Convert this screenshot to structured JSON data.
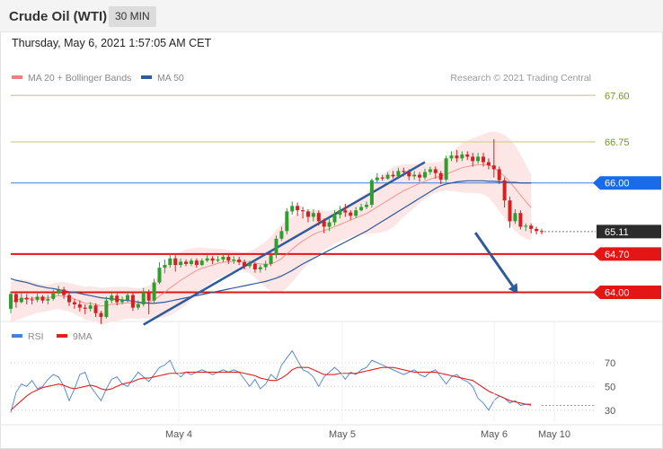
{
  "header": {
    "title": "Crude Oil (WTI)",
    "interval": "30 MIN",
    "datetime": "Thursday, May 6, 2021 1:57:05 AM CET"
  },
  "colors": {
    "bollinger": "#f08080",
    "bollinger_fill": "#fde3e3",
    "ma50": "#2f5b9a",
    "bull": "#2e9e2e",
    "bear": "#d42020",
    "target": "#9ab92e",
    "support": "#e41515",
    "resistance_blue": "#3d7be0",
    "arrow": "#2f5b9a",
    "rsi": "#4a7fd8",
    "rsi_ma": "#e02020",
    "last_price": "#2b2b2b"
  },
  "chart_data": [
    {
      "type": "candlestick",
      "legend": [
        {
          "label": "MA 20 + Bollinger Bands",
          "color": "#f08080"
        },
        {
          "label": "MA 50",
          "color": "#2f5b9a"
        }
      ],
      "legend_placement": "top-left",
      "credit": "Research © 2021 Trading Central",
      "ylim": [
        63.5,
        67.9
      ],
      "levels": [
        {
          "value": 67.6,
          "label": "67.60",
          "kind": "target"
        },
        {
          "value": 66.75,
          "label": "66.75",
          "kind": "target"
        },
        {
          "value": 66.0,
          "label": "66.00",
          "kind": "pivot"
        },
        {
          "value": 65.11,
          "label": "65.11",
          "kind": "last"
        },
        {
          "value": 64.7,
          "label": "64.70",
          "kind": "support"
        },
        {
          "value": 64.0,
          "label": "64.00",
          "kind": "support"
        }
      ],
      "trendline": {
        "from": [
          0.25,
          63.41
        ],
        "to": [
          0.78,
          66.38
        ]
      },
      "arrow": {
        "from": [
          0.875,
          65.09
        ],
        "to": [
          0.955,
          63.98
        ]
      },
      "x_ticks": [
        {
          "label": "May 4",
          "pos": 0.283
        },
        {
          "label": "May 5",
          "pos": 0.553
        },
        {
          "label": "May 6",
          "pos": 0.8
        },
        {
          "label": "May 10",
          "pos": 0.9
        }
      ],
      "candles": [
        [
          63.7,
          63.97,
          63.62,
          64.02
        ],
        [
          63.97,
          63.82,
          63.72,
          64.02
        ],
        [
          63.82,
          63.9,
          63.8,
          64.0
        ],
        [
          63.9,
          63.87,
          63.78,
          63.97
        ],
        [
          63.87,
          63.86,
          63.78,
          63.92
        ],
        [
          63.86,
          63.92,
          63.82,
          63.98
        ],
        [
          63.92,
          63.85,
          63.8,
          63.95
        ],
        [
          63.85,
          63.88,
          63.78,
          63.95
        ],
        [
          63.88,
          63.98,
          63.85,
          64.05
        ],
        [
          63.98,
          64.05,
          63.95,
          64.12
        ],
        [
          64.05,
          63.95,
          63.88,
          64.1
        ],
        [
          63.95,
          63.82,
          63.75,
          64.0
        ],
        [
          63.82,
          63.78,
          63.7,
          63.88
        ],
        [
          63.78,
          63.72,
          63.65,
          63.85
        ],
        [
          63.72,
          63.7,
          63.6,
          63.78
        ],
        [
          63.7,
          63.76,
          63.65,
          63.82
        ],
        [
          63.76,
          63.62,
          63.55,
          63.8
        ],
        [
          63.62,
          63.55,
          63.42,
          63.66
        ],
        [
          63.55,
          63.85,
          63.52,
          63.92
        ],
        [
          63.85,
          63.94,
          63.8,
          64.0
        ],
        [
          63.94,
          63.82,
          63.76,
          63.98
        ],
        [
          63.82,
          63.86,
          63.78,
          63.92
        ],
        [
          63.86,
          63.95,
          63.82,
          64.02
        ],
        [
          63.95,
          63.72,
          63.66,
          64.0
        ],
        [
          63.72,
          63.78,
          63.68,
          63.85
        ],
        [
          63.78,
          64.0,
          63.74,
          64.08
        ],
        [
          64.0,
          63.85,
          63.6,
          64.05
        ],
        [
          63.85,
          64.18,
          63.8,
          64.25
        ],
        [
          64.18,
          64.45,
          64.15,
          64.55
        ],
        [
          64.45,
          64.5,
          64.35,
          64.6
        ],
        [
          64.5,
          64.62,
          64.45,
          64.7
        ],
        [
          64.62,
          64.5,
          64.38,
          64.68
        ],
        [
          64.5,
          64.56,
          64.45,
          64.62
        ],
        [
          64.56,
          64.52,
          64.48,
          64.6
        ],
        [
          64.52,
          64.58,
          64.48,
          64.62
        ],
        [
          64.58,
          64.5,
          64.45,
          64.62
        ],
        [
          64.5,
          64.58,
          64.48,
          64.62
        ],
        [
          64.58,
          64.62,
          64.55,
          64.68
        ],
        [
          64.62,
          64.58,
          64.52,
          64.66
        ],
        [
          64.58,
          64.6,
          64.55,
          64.66
        ],
        [
          64.6,
          64.65,
          64.55,
          64.7
        ],
        [
          64.65,
          64.58,
          64.52,
          64.7
        ],
        [
          64.58,
          64.6,
          64.52,
          64.66
        ],
        [
          64.6,
          64.55,
          64.5,
          64.65
        ],
        [
          64.55,
          64.48,
          64.42,
          64.6
        ],
        [
          64.48,
          64.52,
          64.44,
          64.58
        ],
        [
          64.52,
          64.42,
          64.36,
          64.55
        ],
        [
          64.42,
          64.46,
          64.36,
          64.5
        ],
        [
          64.46,
          64.52,
          64.4,
          64.58
        ],
        [
          64.52,
          64.68,
          64.48,
          64.74
        ],
        [
          64.68,
          64.98,
          64.62,
          65.04
        ],
        [
          64.98,
          65.12,
          64.94,
          65.2
        ],
        [
          65.12,
          65.48,
          65.06,
          65.54
        ],
        [
          65.48,
          65.58,
          65.42,
          65.66
        ],
        [
          65.58,
          65.5,
          65.4,
          65.64
        ],
        [
          65.5,
          65.48,
          65.35,
          65.56
        ],
        [
          65.48,
          65.38,
          65.28,
          65.52
        ],
        [
          65.38,
          65.45,
          65.3,
          65.52
        ],
        [
          65.45,
          65.3,
          65.22,
          65.5
        ],
        [
          65.3,
          65.2,
          65.08,
          65.35
        ],
        [
          65.2,
          65.28,
          65.12,
          65.34
        ],
        [
          65.28,
          65.42,
          65.22,
          65.5
        ],
        [
          65.42,
          65.5,
          65.35,
          65.58
        ],
        [
          65.5,
          65.46,
          65.38,
          65.62
        ],
        [
          65.46,
          65.4,
          65.33,
          65.5
        ],
        [
          65.4,
          65.5,
          65.36,
          65.56
        ],
        [
          65.5,
          65.56,
          65.48,
          65.62
        ],
        [
          65.56,
          65.6,
          65.52,
          65.66
        ],
        [
          65.6,
          66.05,
          65.55,
          66.08
        ],
        [
          66.05,
          66.1,
          66.0,
          66.18
        ],
        [
          66.1,
          66.08,
          66.04,
          66.15
        ],
        [
          66.08,
          66.15,
          66.06,
          66.2
        ],
        [
          66.15,
          66.12,
          66.08,
          66.22
        ],
        [
          66.12,
          66.22,
          66.1,
          66.28
        ],
        [
          66.22,
          66.2,
          66.12,
          66.28
        ],
        [
          66.2,
          66.12,
          66.05,
          66.25
        ],
        [
          66.12,
          66.15,
          66.06,
          66.22
        ],
        [
          66.15,
          66.1,
          66.02,
          66.2
        ],
        [
          66.1,
          66.2,
          66.06,
          66.26
        ],
        [
          66.2,
          66.25,
          66.15,
          66.3
        ],
        [
          66.25,
          66.18,
          66.08,
          66.3
        ],
        [
          66.18,
          66.06,
          65.98,
          66.22
        ],
        [
          66.06,
          66.45,
          66.02,
          66.5
        ],
        [
          66.45,
          66.5,
          66.4,
          66.58
        ],
        [
          66.5,
          66.45,
          66.38,
          66.6
        ],
        [
          66.45,
          66.52,
          66.4,
          66.58
        ],
        [
          66.52,
          66.48,
          66.42,
          66.58
        ],
        [
          66.48,
          66.4,
          66.3,
          66.55
        ],
        [
          66.4,
          66.48,
          66.35,
          66.55
        ],
        [
          66.48,
          66.38,
          66.3,
          66.55
        ],
        [
          66.38,
          66.32,
          66.25,
          66.45
        ],
        [
          66.32,
          66.25,
          66.1,
          66.8
        ],
        [
          66.25,
          66.05,
          65.98,
          66.3
        ],
        [
          66.05,
          65.68,
          65.55,
          66.1
        ],
        [
          65.68,
          65.3,
          65.18,
          65.75
        ],
        [
          65.3,
          65.45,
          65.25,
          65.52
        ],
        [
          65.45,
          65.2,
          65.15,
          65.5
        ],
        [
          65.2,
          65.22,
          65.12,
          65.26
        ],
        [
          65.22,
          65.16,
          65.08,
          65.26
        ],
        [
          65.16,
          65.12,
          65.06,
          65.2
        ],
        [
          65.12,
          65.11,
          65.06,
          65.16
        ]
      ],
      "ma20": [
        63.82,
        63.86,
        63.88,
        63.89,
        63.89,
        63.9,
        63.89,
        63.9,
        63.92,
        63.94,
        63.93,
        63.91,
        63.88,
        63.84,
        63.8,
        63.8,
        63.78,
        63.75,
        63.76,
        63.78,
        63.79,
        63.8,
        63.81,
        63.8,
        63.79,
        63.81,
        63.82,
        63.86,
        63.93,
        64.0,
        64.08,
        64.15,
        64.22,
        64.28,
        64.34,
        64.4,
        64.44,
        64.47,
        64.5,
        64.53,
        64.55,
        64.56,
        64.57,
        64.57,
        64.56,
        64.55,
        64.53,
        64.52,
        64.51,
        64.52,
        64.56,
        64.62,
        64.7,
        64.79,
        64.87,
        64.94,
        65.0,
        65.06,
        65.1,
        65.13,
        65.16,
        65.2,
        65.24,
        65.28,
        65.32,
        65.36,
        65.4,
        65.44,
        65.5,
        65.56,
        65.62,
        65.68,
        65.74,
        65.8,
        65.86,
        65.9,
        65.95,
        65.99,
        66.03,
        66.07,
        66.1,
        66.12,
        66.16,
        66.2,
        66.24,
        66.28,
        66.3,
        66.32,
        66.33,
        66.34,
        66.33,
        66.28,
        66.2,
        66.12,
        66.02,
        65.9,
        65.78,
        65.66,
        65.55
      ],
      "bb_width": [
        0.38,
        0.37,
        0.36,
        0.33,
        0.3,
        0.27,
        0.25,
        0.24,
        0.24,
        0.25,
        0.26,
        0.26,
        0.27,
        0.28,
        0.3,
        0.31,
        0.32,
        0.33,
        0.33,
        0.32,
        0.31,
        0.3,
        0.29,
        0.28,
        0.28,
        0.28,
        0.3,
        0.34,
        0.4,
        0.46,
        0.5,
        0.52,
        0.52,
        0.5,
        0.46,
        0.42,
        0.38,
        0.34,
        0.3,
        0.27,
        0.24,
        0.21,
        0.19,
        0.17,
        0.17,
        0.2,
        0.26,
        0.34,
        0.42,
        0.5,
        0.58,
        0.62,
        0.62,
        0.6,
        0.56,
        0.52,
        0.48,
        0.44,
        0.4,
        0.36,
        0.33,
        0.31,
        0.3,
        0.3,
        0.31,
        0.33,
        0.35,
        0.38,
        0.42,
        0.48,
        0.52,
        0.55,
        0.55,
        0.52,
        0.48,
        0.44,
        0.4,
        0.36,
        0.32,
        0.3,
        0.28,
        0.27,
        0.3,
        0.35,
        0.4,
        0.45,
        0.48,
        0.5,
        0.52,
        0.55,
        0.6,
        0.66,
        0.72,
        0.76,
        0.78,
        0.78,
        0.74,
        0.68,
        0.6
      ],
      "ma50": [
        64.25,
        64.22,
        64.2,
        64.18,
        64.15,
        64.12,
        64.1,
        64.08,
        64.07,
        64.05,
        64.03,
        64.01,
        64.0,
        63.98,
        63.96,
        63.94,
        63.92,
        63.9,
        63.89,
        63.88,
        63.87,
        63.86,
        63.85,
        63.84,
        63.82,
        63.81,
        63.8,
        63.8,
        63.81,
        63.82,
        63.84,
        63.86,
        63.88,
        63.9,
        63.92,
        63.94,
        63.96,
        63.98,
        64.0,
        64.02,
        64.04,
        64.06,
        64.08,
        64.1,
        64.12,
        64.14,
        64.16,
        64.18,
        64.2,
        64.23,
        64.26,
        64.3,
        64.35,
        64.4,
        64.46,
        64.52,
        64.57,
        64.62,
        64.67,
        64.72,
        64.77,
        64.82,
        64.87,
        64.92,
        64.97,
        65.02,
        65.07,
        65.12,
        65.18,
        65.24,
        65.3,
        65.36,
        65.42,
        65.48,
        65.54,
        65.6,
        65.66,
        65.72,
        65.78,
        65.84,
        65.9,
        65.95,
        65.98,
        66.0,
        66.02,
        66.03,
        66.04,
        66.04,
        66.04,
        66.04,
        66.03,
        66.03,
        66.02,
        66.02,
        66.01,
        66.01,
        66.0,
        66.0,
        66.0
      ]
    },
    {
      "type": "line",
      "legend": [
        {
          "label": "RSI",
          "color": "#4a7fd8"
        },
        {
          "label": "9MA",
          "color": "#e02020"
        }
      ],
      "legend_placement": "top-left",
      "ylim": [
        20,
        85
      ],
      "y_ticks": [
        70,
        50,
        30
      ],
      "series": [
        {
          "name": "RSI",
          "values": [
            28,
            45,
            52,
            50,
            55,
            48,
            50,
            56,
            60,
            58,
            50,
            38,
            48,
            60,
            62,
            50,
            44,
            38,
            48,
            56,
            58,
            52,
            50,
            56,
            62,
            58,
            54,
            60,
            66,
            68,
            72,
            62,
            58,
            62,
            60,
            62,
            64,
            62,
            60,
            62,
            64,
            62,
            64,
            62,
            56,
            50,
            56,
            48,
            52,
            60,
            56,
            68,
            74,
            80,
            72,
            64,
            62,
            58,
            50,
            58,
            62,
            66,
            62,
            56,
            62,
            60,
            64,
            66,
            72,
            70,
            68,
            66,
            64,
            62,
            60,
            62,
            64,
            60,
            58,
            62,
            64,
            58,
            52,
            58,
            60,
            56,
            54,
            50,
            40,
            36,
            30,
            38,
            42,
            40,
            36,
            38,
            34,
            35,
            34
          ]
        },
        {
          "name": "9MA",
          "values": [
            30,
            34,
            38,
            42,
            45,
            47,
            49,
            50,
            51,
            52,
            51,
            49,
            48,
            49,
            50,
            51,
            50,
            48,
            47,
            48,
            50,
            52,
            53,
            54,
            56,
            57,
            57,
            58,
            59,
            60,
            61,
            61,
            61,
            62,
            62,
            62,
            62,
            62,
            62,
            62,
            62,
            62,
            62,
            62,
            61,
            60,
            59,
            57,
            56,
            55,
            55,
            57,
            60,
            64,
            66,
            66,
            66,
            64,
            62,
            60,
            60,
            60,
            61,
            61,
            61,
            61,
            62,
            63,
            64,
            65,
            66,
            66,
            66,
            65,
            64,
            63,
            62,
            62,
            62,
            62,
            62,
            61,
            60,
            59,
            58,
            57,
            56,
            55,
            52,
            49,
            46,
            44,
            42,
            40,
            38,
            37,
            36,
            35,
            35
          ]
        }
      ]
    }
  ]
}
